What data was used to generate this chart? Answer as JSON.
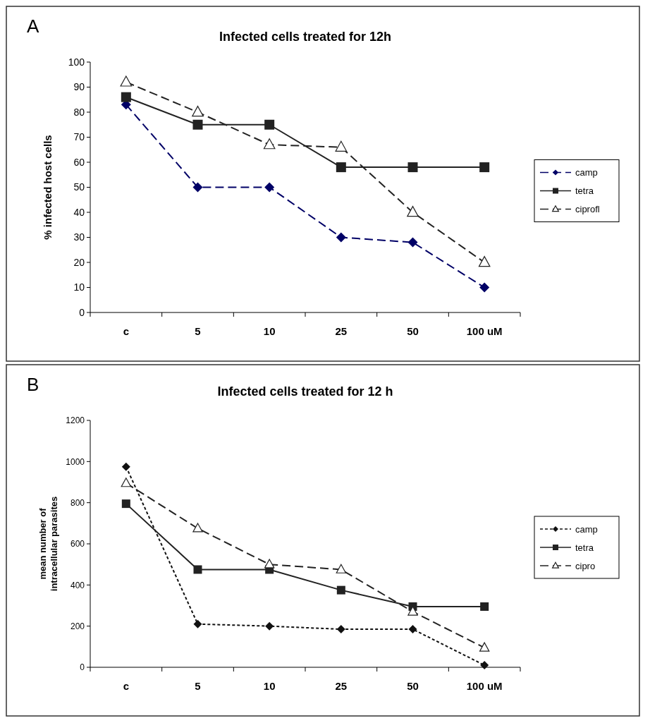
{
  "chart_data": [
    {
      "type": "line",
      "title": "Infected cells treated for 12h",
      "ylabel": "% infected host cells",
      "annotations": [
        "A"
      ],
      "categories": [
        "c",
        "5",
        "10",
        "25",
        "50",
        "100 uM"
      ],
      "ylim": [
        0,
        100
      ],
      "yticks": [
        0,
        10,
        20,
        30,
        40,
        50,
        60,
        70,
        80,
        90,
        100
      ],
      "grid": false,
      "legend": "right",
      "series": [
        {
          "name": "camp",
          "color": "#000066",
          "values": [
            83,
            50,
            50,
            30,
            28,
            10
          ],
          "marker": "diamond",
          "line_style": "dashed"
        },
        {
          "name": "tetra",
          "color": "#222222",
          "values": [
            86,
            75,
            75,
            58,
            58,
            58
          ],
          "marker": "square",
          "line_style": "solid"
        },
        {
          "name": "ciprofl",
          "color": "#222222",
          "values": [
            92,
            80,
            67,
            66,
            40,
            20
          ],
          "marker": "triangle",
          "line_style": "dashed"
        }
      ]
    },
    {
      "type": "line",
      "title": "Infected cells treated for 12 h",
      "ylabel": "mean number of intracellular parasites",
      "annotations": [
        "B"
      ],
      "categories": [
        "c",
        "5",
        "10",
        "25",
        "50",
        "100 uM"
      ],
      "ylim": [
        0,
        1200
      ],
      "yticks": [
        0,
        200,
        400,
        600,
        800,
        1000,
        1200
      ],
      "grid": false,
      "legend": "right",
      "series": [
        {
          "name": "camp",
          "color": "#111111",
          "values": [
            975,
            210,
            200,
            185,
            185,
            10
          ],
          "marker": "diamond",
          "line_style": "dotted"
        },
        {
          "name": "tetra",
          "color": "#222222",
          "values": [
            795,
            475,
            475,
            375,
            295,
            295
          ],
          "marker": "square",
          "line_style": "solid"
        },
        {
          "name": "cipro",
          "color": "#222222",
          "values": [
            895,
            675,
            500,
            475,
            270,
            95
          ],
          "marker": "triangle",
          "line_style": "dashed"
        }
      ]
    }
  ]
}
